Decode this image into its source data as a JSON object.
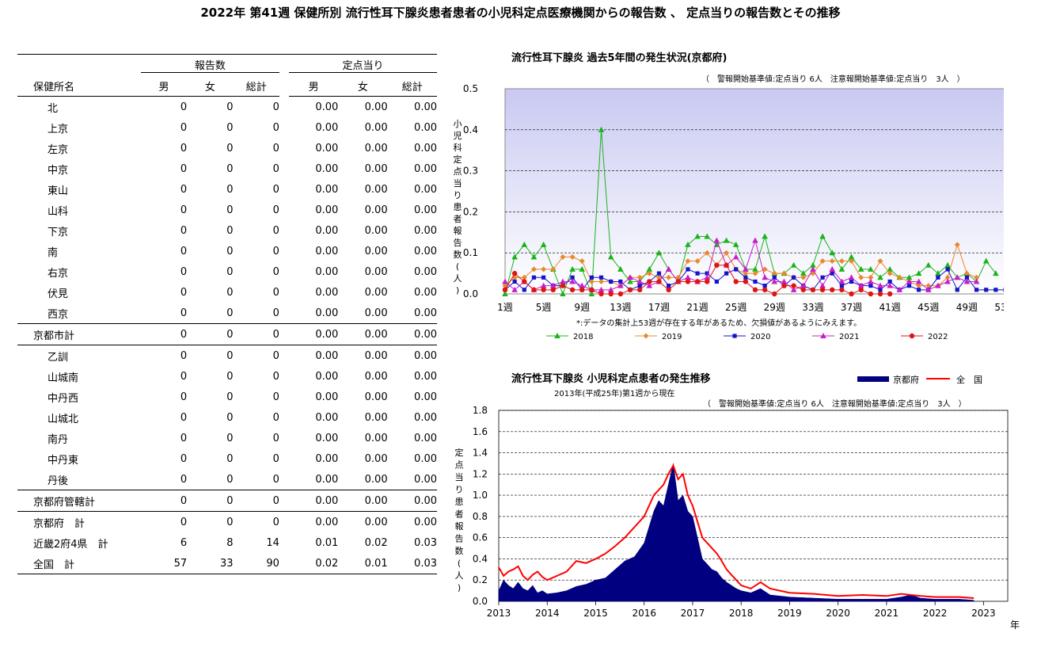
{
  "title": "2022年 第41週 保健所別 流行性耳下腺炎患者患者の小児科定点医療機関からの報告数 、 定点当りの報告数とその推移",
  "table": {
    "group_headers": [
      "報告数",
      "定点当り"
    ],
    "columns": [
      "保健所名",
      "男",
      "女",
      "総計",
      "男",
      "女",
      "総計"
    ],
    "rows": [
      {
        "name": "北",
        "level": 1,
        "sep": false,
        "values": [
          "0",
          "0",
          "0",
          "0.00",
          "0.00",
          "0.00"
        ]
      },
      {
        "name": "上京",
        "level": 1,
        "sep": false,
        "values": [
          "0",
          "0",
          "0",
          "0.00",
          "0.00",
          "0.00"
        ]
      },
      {
        "name": "左京",
        "level": 1,
        "sep": false,
        "values": [
          "0",
          "0",
          "0",
          "0.00",
          "0.00",
          "0.00"
        ]
      },
      {
        "name": "中京",
        "level": 1,
        "sep": false,
        "values": [
          "0",
          "0",
          "0",
          "0.00",
          "0.00",
          "0.00"
        ]
      },
      {
        "name": "東山",
        "level": 1,
        "sep": false,
        "values": [
          "0",
          "0",
          "0",
          "0.00",
          "0.00",
          "0.00"
        ]
      },
      {
        "name": "山科",
        "level": 1,
        "sep": false,
        "values": [
          "0",
          "0",
          "0",
          "0.00",
          "0.00",
          "0.00"
        ]
      },
      {
        "name": "下京",
        "level": 1,
        "sep": false,
        "values": [
          "0",
          "0",
          "0",
          "0.00",
          "0.00",
          "0.00"
        ]
      },
      {
        "name": "南",
        "level": 1,
        "sep": false,
        "values": [
          "0",
          "0",
          "0",
          "0.00",
          "0.00",
          "0.00"
        ]
      },
      {
        "name": "右京",
        "level": 1,
        "sep": false,
        "values": [
          "0",
          "0",
          "0",
          "0.00",
          "0.00",
          "0.00"
        ]
      },
      {
        "name": "伏見",
        "level": 1,
        "sep": false,
        "values": [
          "0",
          "0",
          "0",
          "0.00",
          "0.00",
          "0.00"
        ]
      },
      {
        "name": "西京",
        "level": 1,
        "sep": false,
        "values": [
          "0",
          "0",
          "0",
          "0.00",
          "0.00",
          "0.00"
        ]
      },
      {
        "name": "京都市計",
        "level": 0,
        "sep": true,
        "values": [
          "0",
          "0",
          "0",
          "0.00",
          "0.00",
          "0.00"
        ]
      },
      {
        "name": "乙訓",
        "level": 1,
        "sep": true,
        "values": [
          "0",
          "0",
          "0",
          "0.00",
          "0.00",
          "0.00"
        ]
      },
      {
        "name": "山城南",
        "level": 1,
        "sep": false,
        "values": [
          "0",
          "0",
          "0",
          "0.00",
          "0.00",
          "0.00"
        ]
      },
      {
        "name": "中丹西",
        "level": 1,
        "sep": false,
        "values": [
          "0",
          "0",
          "0",
          "0.00",
          "0.00",
          "0.00"
        ]
      },
      {
        "name": "山城北",
        "level": 1,
        "sep": false,
        "values": [
          "0",
          "0",
          "0",
          "0.00",
          "0.00",
          "0.00"
        ]
      },
      {
        "name": "南丹",
        "level": 1,
        "sep": false,
        "values": [
          "0",
          "0",
          "0",
          "0.00",
          "0.00",
          "0.00"
        ]
      },
      {
        "name": "中丹東",
        "level": 1,
        "sep": false,
        "values": [
          "0",
          "0",
          "0",
          "0.00",
          "0.00",
          "0.00"
        ]
      },
      {
        "name": "丹後",
        "level": 1,
        "sep": false,
        "values": [
          "0",
          "0",
          "0",
          "0.00",
          "0.00",
          "0.00"
        ]
      },
      {
        "name": "京都府管轄計",
        "level": 0,
        "sep": true,
        "values": [
          "0",
          "0",
          "0",
          "0.00",
          "0.00",
          "0.00"
        ]
      },
      {
        "name": "京都府　計",
        "level": 0,
        "sep": true,
        "values": [
          "0",
          "0",
          "0",
          "0.00",
          "0.00",
          "0.00"
        ]
      },
      {
        "name": "近畿2府4県　計",
        "level": 0,
        "sep": false,
        "values": [
          "6",
          "8",
          "14",
          "0.01",
          "0.02",
          "0.03"
        ]
      },
      {
        "name": "全国　計",
        "level": 0,
        "sep": false,
        "values": [
          "57",
          "33",
          "90",
          "0.02",
          "0.01",
          "0.03"
        ]
      }
    ]
  },
  "chart_data": [
    {
      "type": "line",
      "title": "流行性耳下腺炎 過去5年間の発生状況(京都府)",
      "subtitle": "（　警報開始基準値:定点当り 6人　注意報開始基準値:定点当り　3人　）",
      "ylabel": "小児科定点当り患者報告数(人)",
      "xlabel": "",
      "ylim": [
        0,
        0.5
      ],
      "yticks": [
        "0.0",
        "0.1",
        "0.2",
        "0.3",
        "0.4",
        "0.5"
      ],
      "xlim": [
        1,
        53
      ],
      "xticks": [
        1,
        5,
        9,
        13,
        17,
        21,
        25,
        29,
        33,
        37,
        41,
        45,
        49,
        53
      ],
      "xtick_suffix": "週",
      "note": "*:データの集計上53週が存在する年があるため、欠損値があるようにみえます。",
      "grid": true,
      "legend_position": "bottom",
      "series": [
        {
          "name": "2018",
          "color": "#19b419",
          "marker": "triangle",
          "values": [
            0,
            0.09,
            0.12,
            0.09,
            0.12,
            0.06,
            0,
            0.06,
            0.06,
            0,
            0.4,
            0.09,
            0.06,
            0.03,
            0.03,
            0.06,
            0.1,
            0.06,
            0.03,
            0.12,
            0.14,
            0.14,
            0.12,
            0.13,
            0.12,
            0.06,
            0.06,
            0.14,
            0.05,
            0.05,
            0.07,
            0.05,
            0.07,
            0.14,
            0.1,
            0.06,
            0.09,
            0.06,
            0.06,
            0.04,
            0.06,
            0.04,
            0.04,
            0.05,
            0.07,
            0.05,
            0.07,
            0.04,
            0.05,
            0.03,
            0.08,
            0.05
          ]
        },
        {
          "name": "2019",
          "color": "#e8892c",
          "marker": "diamond",
          "values": [
            0.02,
            0.04,
            0.04,
            0.06,
            0.06,
            0.06,
            0.09,
            0.09,
            0.08,
            0.03,
            0.03,
            0.03,
            0.02,
            0.04,
            0.04,
            0.05,
            0.04,
            0.04,
            0.04,
            0.08,
            0.08,
            0.1,
            0.07,
            0.1,
            0.06,
            0.05,
            0.05,
            0.06,
            0.05,
            0.05,
            0.04,
            0.04,
            0.05,
            0.08,
            0.08,
            0.08,
            0.08,
            0.04,
            0.04,
            0.08,
            0.05,
            0.04,
            0.03,
            0.02,
            0.02,
            0.02,
            0.04,
            0.12,
            0.05,
            0.04
          ]
        },
        {
          "name": "2020",
          "color": "#1414cc",
          "marker": "square",
          "values": [
            0.01,
            0.03,
            0.01,
            0.04,
            0.04,
            0.02,
            0.02,
            0.04,
            0.01,
            0.04,
            0.04,
            0.03,
            0.03,
            0.01,
            0.02,
            0.03,
            0.05,
            0.02,
            0.03,
            0.06,
            0.05,
            0.05,
            0.03,
            0.05,
            0.06,
            0.04,
            0.03,
            0.02,
            0.04,
            0.02,
            0.04,
            0.02,
            0.01,
            0.04,
            0.05,
            0.02,
            0.03,
            0.02,
            0.02,
            0.01,
            0.03,
            0.01,
            0.02,
            0.01,
            0.01,
            0.04,
            0.06,
            0.01,
            0.04,
            0.01,
            0.01,
            0.01,
            0.01
          ]
        },
        {
          "name": "2021",
          "color": "#c81ec8",
          "marker": "triangle",
          "values": [
            0.03,
            0.01,
            0.03,
            0.01,
            0.02,
            0.02,
            0.03,
            0.03,
            0.02,
            0.01,
            0.01,
            0.01,
            0.02,
            0.04,
            0.03,
            0.02,
            0.03,
            0.06,
            0.03,
            0.04,
            0.03,
            0.04,
            0.13,
            0.07,
            0.09,
            0.06,
            0.13,
            0.04,
            0.03,
            0.03,
            0.01,
            0.02,
            0.06,
            0.02,
            0.06,
            0.03,
            0.04,
            0.02,
            0.03,
            0.02,
            0.02,
            0.01,
            0.03,
            0.03,
            0.01,
            0.02,
            0.03,
            0.04,
            0.03,
            0.03
          ]
        },
        {
          "name": "2022",
          "color": "#e01414",
          "marker": "circle",
          "values": [
            0.01,
            0.05,
            0.03,
            0.01,
            0.01,
            0.01,
            0.02,
            0.01,
            0.01,
            0.01,
            0,
            0,
            0,
            0.01,
            0.01,
            0.03,
            0.03,
            0.01,
            0.03,
            0.03,
            0.03,
            0.03,
            0.07,
            0.07,
            0.03,
            0.03,
            0.01,
            0.01,
            0,
            0.02,
            0.02,
            0.01,
            0.01,
            0.01,
            0.01,
            0.01,
            0,
            0.01,
            0,
            0,
            0
          ]
        }
      ]
    },
    {
      "type": "area",
      "title": "流行性耳下腺炎 小児科定点患者の発生推移",
      "subtitle": "2013年(平成25年)第1週から現在",
      "note": "（　警報開始基準値:定点当り 6人　注意報開始基準値:定点当り　3人　）",
      "ylabel": "定点当り患者報告数(人)",
      "xlabel": "年",
      "ylim": [
        0,
        1.8
      ],
      "yticks": [
        "0.0",
        "0.2",
        "0.4",
        "0.6",
        "0.8",
        "1.0",
        "1.2",
        "1.4",
        "1.6",
        "1.8"
      ],
      "xlim": [
        2013,
        2023.5
      ],
      "xticks": [
        "2013",
        "2014",
        "2015",
        "2016",
        "2017",
        "2018",
        "2019",
        "2020",
        "2021",
        "2022",
        "2023"
      ],
      "grid": true,
      "legend_position": "top-right",
      "series": [
        {
          "name": "京都府",
          "color": "#000080",
          "kind": "area",
          "x": [
            2013.0,
            2013.1,
            2013.2,
            2013.3,
            2013.4,
            2013.5,
            2013.6,
            2013.7,
            2013.8,
            2013.9,
            2014.0,
            2014.2,
            2014.4,
            2014.6,
            2014.8,
            2015.0,
            2015.2,
            2015.4,
            2015.6,
            2015.8,
            2016.0,
            2016.1,
            2016.2,
            2016.3,
            2016.4,
            2016.5,
            2016.6,
            2016.7,
            2016.8,
            2016.9,
            2017.0,
            2017.1,
            2017.2,
            2017.3,
            2017.4,
            2017.5,
            2017.6,
            2017.7,
            2017.8,
            2017.9,
            2018.0,
            2018.2,
            2018.4,
            2018.6,
            2018.8,
            2019.0,
            2019.5,
            2020.0,
            2020.5,
            2021.0,
            2021.3,
            2021.5,
            2021.7,
            2022.0,
            2022.5,
            2022.8
          ],
          "values": [
            0.1,
            0.2,
            0.15,
            0.12,
            0.18,
            0.12,
            0.1,
            0.15,
            0.08,
            0.1,
            0.07,
            0.08,
            0.1,
            0.14,
            0.16,
            0.2,
            0.22,
            0.3,
            0.38,
            0.42,
            0.55,
            0.7,
            0.85,
            0.95,
            0.9,
            1.1,
            1.3,
            0.95,
            1.0,
            0.85,
            0.8,
            0.6,
            0.4,
            0.35,
            0.3,
            0.28,
            0.22,
            0.18,
            0.15,
            0.12,
            0.1,
            0.08,
            0.12,
            0.06,
            0.05,
            0.04,
            0.03,
            0.02,
            0.02,
            0.02,
            0.04,
            0.06,
            0.03,
            0.02,
            0.02,
            0.01
          ]
        },
        {
          "name": "全　国",
          "color": "#ff0000",
          "kind": "line",
          "x": [
            2013.0,
            2013.1,
            2013.2,
            2013.3,
            2013.4,
            2013.5,
            2013.6,
            2013.7,
            2013.8,
            2013.9,
            2014.0,
            2014.2,
            2014.4,
            2014.6,
            2014.8,
            2015.0,
            2015.2,
            2015.4,
            2015.6,
            2015.8,
            2016.0,
            2016.1,
            2016.2,
            2016.3,
            2016.4,
            2016.5,
            2016.6,
            2016.7,
            2016.8,
            2016.9,
            2017.0,
            2017.1,
            2017.2,
            2017.3,
            2017.4,
            2017.5,
            2017.6,
            2017.7,
            2017.8,
            2017.9,
            2018.0,
            2018.2,
            2018.4,
            2018.6,
            2018.8,
            2019.0,
            2019.5,
            2020.0,
            2020.5,
            2021.0,
            2021.3,
            2021.5,
            2021.7,
            2022.0,
            2022.5,
            2022.8
          ],
          "values": [
            0.32,
            0.24,
            0.28,
            0.3,
            0.33,
            0.24,
            0.2,
            0.25,
            0.28,
            0.23,
            0.2,
            0.24,
            0.28,
            0.38,
            0.36,
            0.4,
            0.45,
            0.52,
            0.6,
            0.7,
            0.8,
            0.9,
            1.0,
            1.05,
            1.1,
            1.2,
            1.28,
            1.15,
            1.2,
            1.0,
            0.9,
            0.75,
            0.6,
            0.55,
            0.5,
            0.45,
            0.38,
            0.3,
            0.25,
            0.2,
            0.15,
            0.12,
            0.18,
            0.12,
            0.1,
            0.08,
            0.07,
            0.05,
            0.06,
            0.05,
            0.07,
            0.06,
            0.05,
            0.04,
            0.04,
            0.03
          ]
        }
      ]
    }
  ]
}
